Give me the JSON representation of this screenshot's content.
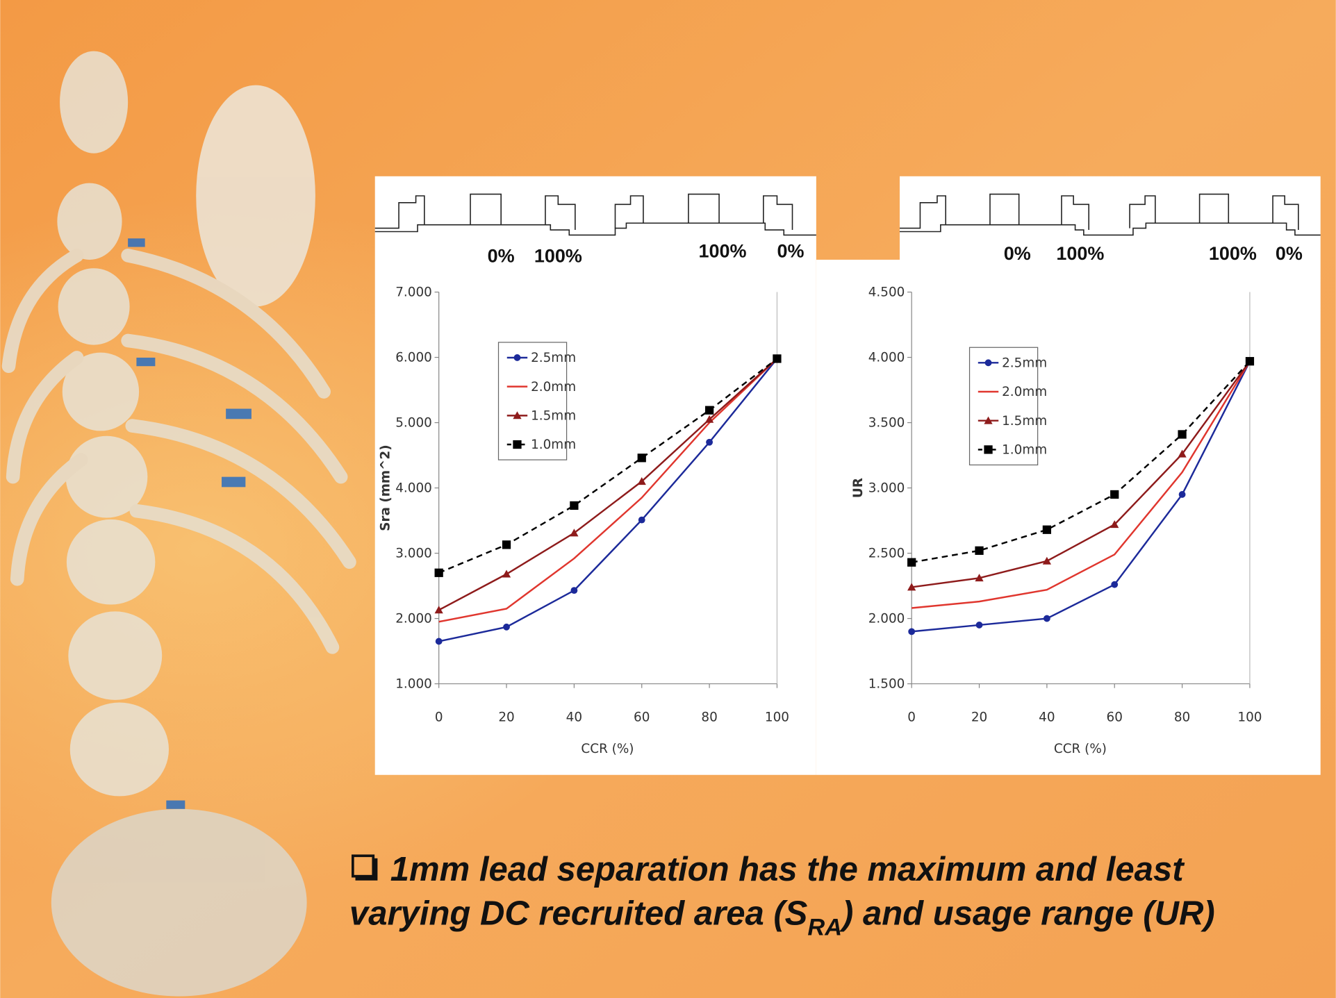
{
  "chart_data": [
    {
      "type": "line",
      "y_label": "Sra (mm^2)",
      "x_label": "CCR (%)",
      "annotations": [
        "0%",
        "100%",
        "100%",
        "0%"
      ],
      "x": [
        0,
        20,
        40,
        60,
        80,
        100
      ],
      "xlim": [
        0,
        100
      ],
      "xticks": [
        0,
        20,
        40,
        60,
        80,
        100
      ],
      "ylim": [
        1,
        7
      ],
      "yticks": [
        {
          "value": 1,
          "label": "1.000"
        },
        {
          "value": 2,
          "label": "2.000"
        },
        {
          "value": 3,
          "label": "3.000"
        },
        {
          "value": 4,
          "label": "4.000"
        },
        {
          "value": 5,
          "label": "5.000"
        },
        {
          "value": 6,
          "label": "6.000"
        },
        {
          "value": 7,
          "label": "7.000"
        }
      ],
      "grid": false,
      "legend": "upper left",
      "series": [
        {
          "name": "2.5mm",
          "color": "#1c2a9a",
          "marker": "circle",
          "line_style": "solid",
          "values": [
            1.65,
            1.87,
            2.43,
            3.51,
            4.7,
            5.98
          ]
        },
        {
          "name": "2.0mm",
          "color": "#e0362e",
          "marker": "none",
          "line_style": "solid",
          "values": [
            1.95,
            2.15,
            2.92,
            3.85,
            5.0,
            5.98
          ]
        },
        {
          "name": "1.5mm",
          "color": "#8e1b1b",
          "marker": "triangle",
          "line_style": "solid",
          "values": [
            2.13,
            2.68,
            3.31,
            4.1,
            5.05,
            5.98
          ]
        },
        {
          "name": "1.0mm",
          "color": "#000000",
          "marker": "square",
          "line_style": "dashed",
          "values": [
            2.7,
            3.13,
            3.73,
            4.46,
            5.19,
            5.98
          ]
        }
      ]
    },
    {
      "type": "line",
      "y_label": "UR",
      "x_label": "CCR (%)",
      "annotations": [
        "0%",
        "100%",
        "100%",
        "0%"
      ],
      "x": [
        0,
        20,
        40,
        60,
        80,
        100
      ],
      "xlim": [
        0,
        100
      ],
      "xticks": [
        0,
        20,
        40,
        60,
        80,
        100
      ],
      "ylim": [
        1.5,
        4.5
      ],
      "yticks": [
        {
          "value": 1.5,
          "label": "1.500"
        },
        {
          "value": 2,
          "label": "2.000"
        },
        {
          "value": 2.5,
          "label": "2.500"
        },
        {
          "value": 3,
          "label": "3.000"
        },
        {
          "value": 3.5,
          "label": "3.500"
        },
        {
          "value": 4,
          "label": "4.000"
        },
        {
          "value": 4.5,
          "label": "4.500"
        }
      ],
      "grid": false,
      "legend": "upper left",
      "series": [
        {
          "name": "2.5mm",
          "color": "#1c2a9a",
          "marker": "circle",
          "line_style": "solid",
          "values": [
            1.9,
            1.95,
            2.0,
            2.26,
            2.95,
            3.97
          ]
        },
        {
          "name": "2.0mm",
          "color": "#e0362e",
          "marker": "none",
          "line_style": "solid",
          "values": [
            2.08,
            2.13,
            2.22,
            2.49,
            3.12,
            3.97
          ]
        },
        {
          "name": "1.5mm",
          "color": "#8e1b1b",
          "marker": "triangle",
          "line_style": "solid",
          "values": [
            2.24,
            2.31,
            2.44,
            2.72,
            3.26,
            3.97
          ]
        },
        {
          "name": "1.0mm",
          "color": "#000000",
          "marker": "square",
          "line_style": "dashed",
          "values": [
            2.43,
            2.52,
            2.68,
            2.95,
            3.41,
            3.97
          ]
        }
      ]
    }
  ],
  "caption": {
    "lines": [
      "1mm lead separation has the maximum and least",
      "varying DC recruited area (S"
    ],
    "subscript": "RA",
    "tail": ") and usage range (UR)"
  }
}
